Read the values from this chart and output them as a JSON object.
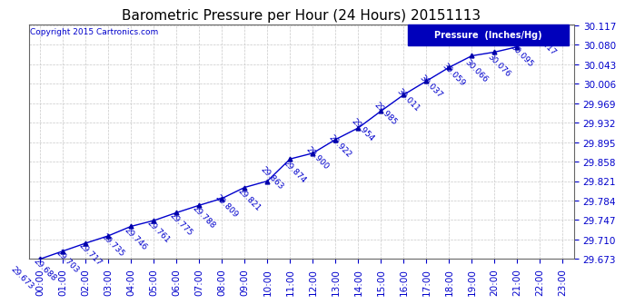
{
  "title": "Barometric Pressure per Hour (24 Hours) 20151113",
  "copyright": "Copyright 2015 Cartronics.com",
  "legend_label": "Pressure  (Inches/Hg)",
  "hours": [
    "00:00",
    "01:00",
    "02:00",
    "03:00",
    "04:00",
    "05:00",
    "06:00",
    "07:00",
    "08:00",
    "09:00",
    "10:00",
    "11:00",
    "12:00",
    "13:00",
    "14:00",
    "15:00",
    "16:00",
    "17:00",
    "18:00",
    "19:00",
    "20:00",
    "21:00",
    "22:00",
    "23:00"
  ],
  "pressures": [
    29.673,
    29.688,
    29.703,
    29.717,
    29.735,
    29.746,
    29.761,
    29.775,
    29.788,
    29.809,
    29.821,
    29.863,
    29.874,
    29.9,
    29.922,
    29.954,
    29.985,
    30.011,
    30.037,
    30.059,
    30.066,
    30.076,
    30.095,
    30.117
  ],
  "line_color": "#0000cc",
  "marker_color": "#0000aa",
  "bg_color": "#ffffff",
  "grid_color": "#c8c8c8",
  "text_color": "#0000cc",
  "ylim_min": 29.673,
  "ylim_max": 30.117,
  "ytick_interval": 0.037,
  "title_fontsize": 11,
  "annotation_fontsize": 6.5,
  "axis_label_fontsize": 7.5
}
